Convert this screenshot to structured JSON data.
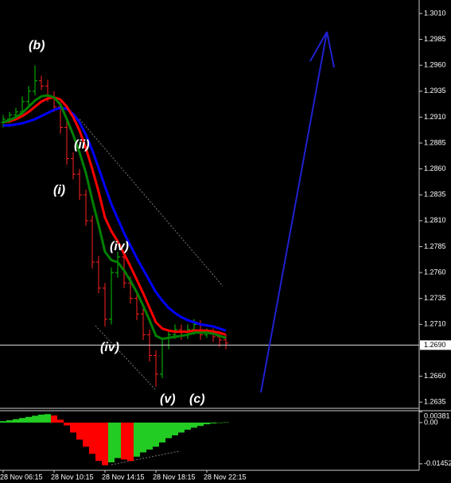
{
  "chart_data": [
    {
      "type": "ohlc",
      "categories": [
        "28 Nov 06:15",
        null,
        null,
        null,
        null,
        null,
        null,
        null,
        "28 Nov 10:15",
        null,
        null,
        null,
        null,
        null,
        null,
        null,
        "28 Nov 14:15",
        null,
        null,
        null,
        null,
        null,
        null,
        null,
        "28 Nov 18:15",
        null,
        null,
        null,
        null,
        null,
        null,
        null,
        "28 Nov 22:15",
        null,
        null,
        null
      ],
      "open": [
        1.2905,
        1.2908,
        1.2912,
        1.2915,
        1.2925,
        1.2935,
        1.2945,
        1.294,
        1.293,
        1.292,
        1.29,
        1.287,
        1.2855,
        1.2835,
        1.281,
        1.277,
        1.2745,
        1.2715,
        1.276,
        1.2775,
        1.275,
        1.2735,
        1.272,
        1.27,
        1.268,
        1.2662,
        1.269,
        1.27,
        1.2705,
        1.27,
        1.2705,
        1.271,
        1.27,
        1.2702,
        1.2698,
        1.2695
      ],
      "high": [
        1.2912,
        1.2915,
        1.2919,
        1.293,
        1.294,
        1.296,
        1.295,
        1.2946,
        1.2935,
        1.2925,
        1.2906,
        1.2876,
        1.286,
        1.284,
        1.2815,
        1.2776,
        1.275,
        1.2765,
        1.278,
        1.278,
        1.2756,
        1.274,
        1.2725,
        1.2705,
        1.2685,
        1.2695,
        1.2705,
        1.271,
        1.271,
        1.271,
        1.2715,
        1.2714,
        1.2706,
        1.2706,
        1.2702,
        1.27
      ],
      "low": [
        1.29,
        1.2904,
        1.2908,
        1.2911,
        1.2921,
        1.2931,
        1.2936,
        1.2925,
        1.2915,
        1.2894,
        1.2864,
        1.285,
        1.283,
        1.2805,
        1.2764,
        1.274,
        1.2708,
        1.271,
        1.2755,
        1.2745,
        1.273,
        1.2714,
        1.2695,
        1.2674,
        1.265,
        1.2658,
        1.2686,
        1.2696,
        1.2695,
        1.2696,
        1.27,
        1.2695,
        1.2697,
        1.2693,
        1.2688,
        1.2686
      ],
      "close": [
        1.2908,
        1.2912,
        1.2915,
        1.2925,
        1.2935,
        1.2945,
        1.294,
        1.293,
        1.292,
        1.29,
        1.287,
        1.2855,
        1.2835,
        1.281,
        1.277,
        1.2745,
        1.2715,
        1.276,
        1.2775,
        1.275,
        1.2735,
        1.272,
        1.27,
        1.268,
        1.2662,
        1.269,
        1.27,
        1.2705,
        1.27,
        1.2705,
        1.271,
        1.27,
        1.2702,
        1.2698,
        1.2695,
        1.2692
      ],
      "up_color": "#00c800",
      "down_color": "#ff2020",
      "series": [
        {
          "color": "#0000ff",
          "values": [
            1.2902,
            1.2902,
            1.2903,
            1.2904,
            1.2906,
            1.2908,
            1.2911,
            1.2914,
            1.2917,
            1.2919,
            1.2918,
            1.2913,
            1.2905,
            1.2893,
            1.2878,
            1.2861,
            1.2843,
            1.2826,
            1.2812,
            1.2798,
            1.2786,
            1.2774,
            1.2763,
            1.2752,
            1.2741,
            1.2733,
            1.2726,
            1.2721,
            1.2717,
            1.2714,
            1.2712,
            1.271,
            1.2709,
            1.2708,
            1.2706,
            1.2704
          ]
        },
        {
          "color": "#ff0000",
          "values": [
            1.2905,
            1.2906,
            1.2908,
            1.2911,
            1.2915,
            1.292,
            1.2925,
            1.2928,
            1.2929,
            1.2927,
            1.292,
            1.291,
            1.2897,
            1.288,
            1.286,
            1.2838,
            1.2813,
            1.28,
            1.279,
            1.2778,
            1.2766,
            1.2753,
            1.274,
            1.2726,
            1.2712,
            1.2706,
            1.2704,
            1.2703,
            1.2703,
            1.2703,
            1.2704,
            1.2704,
            1.2704,
            1.2703,
            1.2702,
            1.27
          ]
        },
        {
          "color": "#008000",
          "values": [
            1.2905,
            1.2907,
            1.291,
            1.2914,
            1.292,
            1.2926,
            1.293,
            1.2931,
            1.2929,
            1.2922,
            1.2908,
            1.2893,
            1.2876,
            1.2856,
            1.283,
            1.2806,
            1.278,
            1.2772,
            1.277,
            1.2762,
            1.2752,
            1.2741,
            1.2728,
            1.2714,
            1.2699,
            1.2696,
            1.2697,
            1.2698,
            1.2699,
            1.27,
            1.2702,
            1.2702,
            1.2702,
            1.2701,
            1.2699,
            1.2697
          ]
        }
      ],
      "ylim": [
        1.2629,
        1.3023
      ],
      "yticks": [
        {
          "value": 1.301,
          "label": "1.3010"
        },
        1.2985,
        {
          "value": 1.296,
          "label": "1.2960"
        },
        1.2935,
        {
          "value": 1.291,
          "label": "1.2910"
        },
        1.2885,
        {
          "value": 1.286,
          "label": "1.2860"
        },
        1.2835,
        {
          "value": 1.281,
          "label": "1.2810"
        },
        1.2785,
        {
          "value": 1.276,
          "label": "1.2760"
        },
        1.2735,
        {
          "value": 1.271,
          "label": "1.2710"
        },
        {
          "value": 1.266,
          "label": "1.2660"
        },
        1.2635
      ],
      "price_line": {
        "value": 1.269,
        "label": "1.2690"
      },
      "annotations": [
        {
          "text": "(b)",
          "color": "#33ccff"
        },
        {
          "text": "(i)",
          "color": "#e020e0"
        },
        {
          "text": "(ii)",
          "color": "#e020e0"
        },
        {
          "text": "(iv)",
          "color": "#e020e0"
        },
        {
          "text": "(iv)",
          "color": "#e020e0"
        },
        {
          "text": "(v)",
          "color": "#e020e0"
        },
        {
          "text": "(c)",
          "color": "#33ccff"
        }
      ]
    },
    {
      "type": "bar",
      "values": [
        0.0005,
        0.0008,
        0.0012,
        0.0016,
        0.002,
        0.0024,
        0.0028,
        0.003,
        0.0025,
        0.001,
        -0.001,
        -0.0035,
        -0.006,
        -0.0085,
        -0.011,
        -0.0135,
        -0.015,
        -0.014,
        -0.0125,
        -0.013,
        -0.0135,
        -0.012,
        -0.0105,
        -0.0095,
        -0.0085,
        -0.007,
        -0.0055,
        -0.0045,
        -0.0035,
        -0.0025,
        -0.0018,
        -0.0012,
        -0.0006,
        -0.0003,
        0.0,
        0.0001
      ],
      "up_color": "#22cc22",
      "down_color": "#ff0000",
      "ylim": [
        -0.0168,
        0.0039
      ],
      "yticks": [
        0.00381,
        {
          "value": 0,
          "label": "0.00"
        },
        -0.01452
      ]
    }
  ]
}
